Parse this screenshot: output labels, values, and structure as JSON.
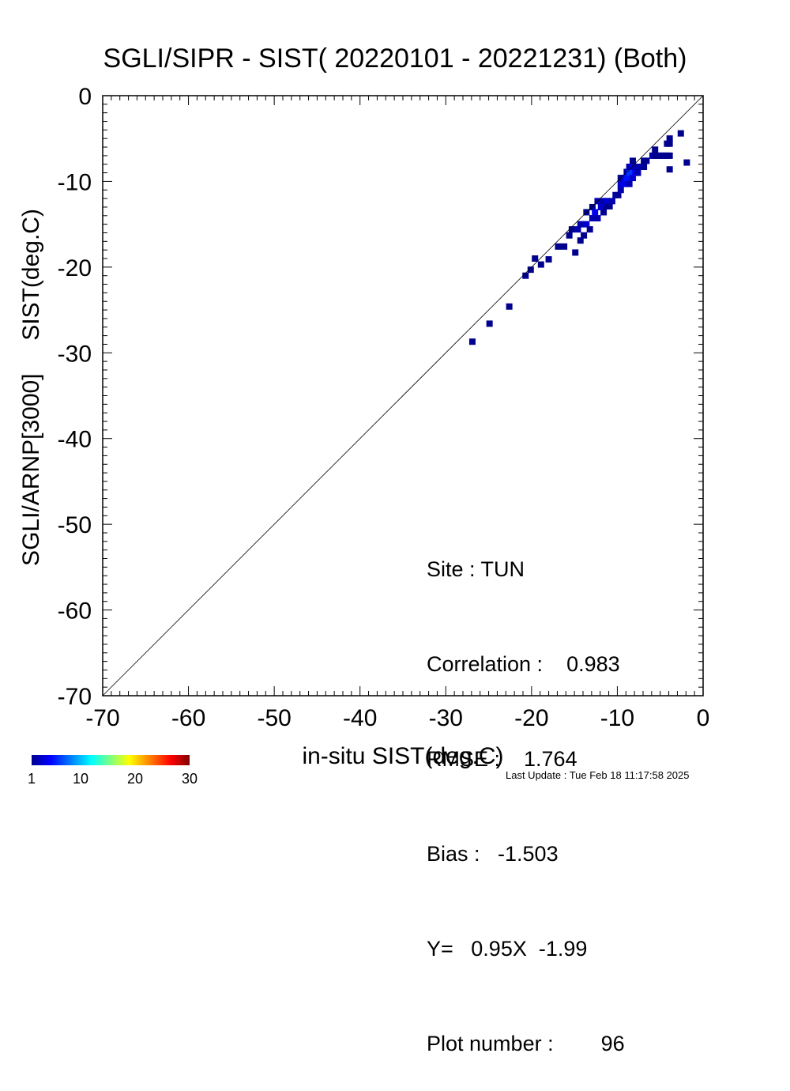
{
  "chart_data": {
    "type": "scatter",
    "title": "SGLI/SIPR - SIST( 20220101 - 20221231) (Both)",
    "xlabel": "in-situ SIST(deg.C)",
    "ylabel_lines": [
      "SGLI/ARNP[3000]",
      "SIST(deg.C)"
    ],
    "xlim": [
      -70,
      0
    ],
    "ylim": [
      -70,
      0
    ],
    "x_ticks": [
      "-70",
      "-60",
      "-50",
      "-40",
      "-30",
      "-20",
      "-10",
      "0"
    ],
    "y_ticks": [
      "0",
      "-10",
      "-20",
      "-30",
      "-40",
      "-50",
      "-60",
      "-70"
    ],
    "grid": false,
    "reference_line": "1:1",
    "colorbar": {
      "min": 1,
      "max": 30,
      "tick_labels": [
        "1",
        "10",
        "20",
        "30"
      ],
      "colormap": "jet"
    },
    "points": [
      {
        "x": -26.9,
        "y": -28.7,
        "c": 1
      },
      {
        "x": -24.9,
        "y": -26.6,
        "c": 1
      },
      {
        "x": -22.6,
        "y": -24.6,
        "c": 1
      },
      {
        "x": -20.7,
        "y": -21.0,
        "c": 1
      },
      {
        "x": -20.1,
        "y": -20.3,
        "c": 1
      },
      {
        "x": -19.6,
        "y": -19.0,
        "c": 1
      },
      {
        "x": -18.9,
        "y": -19.7,
        "c": 1
      },
      {
        "x": -18.0,
        "y": -19.1,
        "c": 1
      },
      {
        "x": -16.9,
        "y": -17.6,
        "c": 1
      },
      {
        "x": -16.2,
        "y": -17.6,
        "c": 1
      },
      {
        "x": -15.6,
        "y": -16.3,
        "c": 1
      },
      {
        "x": -15.3,
        "y": -15.6,
        "c": 1
      },
      {
        "x": -14.9,
        "y": -18.3,
        "c": 1
      },
      {
        "x": -14.6,
        "y": -15.6,
        "c": 2
      },
      {
        "x": -14.3,
        "y": -16.9,
        "c": 1
      },
      {
        "x": -14.3,
        "y": -15.0,
        "c": 2
      },
      {
        "x": -13.9,
        "y": -16.3,
        "c": 1
      },
      {
        "x": -13.6,
        "y": -15.0,
        "c": 3
      },
      {
        "x": -13.6,
        "y": -13.6,
        "c": 1
      },
      {
        "x": -13.2,
        "y": -15.6,
        "c": 1
      },
      {
        "x": -12.9,
        "y": -14.3,
        "c": 2
      },
      {
        "x": -12.9,
        "y": -13.0,
        "c": 1
      },
      {
        "x": -12.6,
        "y": -13.6,
        "c": 4
      },
      {
        "x": -12.3,
        "y": -14.3,
        "c": 2
      },
      {
        "x": -12.3,
        "y": -12.3,
        "c": 2
      },
      {
        "x": -11.9,
        "y": -13.0,
        "c": 3
      },
      {
        "x": -11.6,
        "y": -13.6,
        "c": 1
      },
      {
        "x": -11.6,
        "y": -12.3,
        "c": 2
      },
      {
        "x": -11.2,
        "y": -12.9,
        "c": 1
      },
      {
        "x": -11.2,
        "y": -12.3,
        "c": 3
      },
      {
        "x": -10.9,
        "y": -12.9,
        "c": 1
      },
      {
        "x": -10.6,
        "y": -12.3,
        "c": 2
      },
      {
        "x": -10.2,
        "y": -11.6,
        "c": 2
      },
      {
        "x": -9.9,
        "y": -11.6,
        "c": 1
      },
      {
        "x": -9.6,
        "y": -11.0,
        "c": 2
      },
      {
        "x": -9.6,
        "y": -10.3,
        "c": 3
      },
      {
        "x": -9.6,
        "y": -9.6,
        "c": 1
      },
      {
        "x": -9.2,
        "y": -10.3,
        "c": 4
      },
      {
        "x": -9.2,
        "y": -9.6,
        "c": 3
      },
      {
        "x": -8.9,
        "y": -9.6,
        "c": 5
      },
      {
        "x": -8.9,
        "y": -8.9,
        "c": 2
      },
      {
        "x": -8.6,
        "y": -10.3,
        "c": 2
      },
      {
        "x": -8.6,
        "y": -9.0,
        "c": 6
      },
      {
        "x": -8.6,
        "y": -8.3,
        "c": 2
      },
      {
        "x": -8.2,
        "y": -9.6,
        "c": 3
      },
      {
        "x": -8.2,
        "y": -8.3,
        "c": 4
      },
      {
        "x": -8.2,
        "y": -7.6,
        "c": 1
      },
      {
        "x": -7.9,
        "y": -9.0,
        "c": 4
      },
      {
        "x": -7.9,
        "y": -8.3,
        "c": 2
      },
      {
        "x": -7.6,
        "y": -9.0,
        "c": 2
      },
      {
        "x": -7.2,
        "y": -8.3,
        "c": 2
      },
      {
        "x": -6.9,
        "y": -8.3,
        "c": 1
      },
      {
        "x": -6.9,
        "y": -7.6,
        "c": 1
      },
      {
        "x": -6.6,
        "y": -7.6,
        "c": 1
      },
      {
        "x": -5.9,
        "y": -7.0,
        "c": 2
      },
      {
        "x": -5.6,
        "y": -7.0,
        "c": 1
      },
      {
        "x": -5.6,
        "y": -6.3,
        "c": 1
      },
      {
        "x": -5.2,
        "y": -7.0,
        "c": 1
      },
      {
        "x": -4.9,
        "y": -7.0,
        "c": 1
      },
      {
        "x": -4.6,
        "y": -7.0,
        "c": 1
      },
      {
        "x": -4.2,
        "y": -7.0,
        "c": 1
      },
      {
        "x": -4.2,
        "y": -5.6,
        "c": 1
      },
      {
        "x": -3.9,
        "y": -7.0,
        "c": 1
      },
      {
        "x": -3.9,
        "y": -5.6,
        "c": 1
      },
      {
        "x": -3.9,
        "y": -5.0,
        "c": 1
      },
      {
        "x": -3.9,
        "y": -8.6,
        "c": 1
      },
      {
        "x": -2.6,
        "y": -4.4,
        "c": 1
      },
      {
        "x": -1.9,
        "y": -7.8,
        "c": 1
      }
    ]
  },
  "stats": {
    "site": "Site : TUN",
    "correlation": "Correlation :    0.983",
    "rmse": "RMSE :    1.764",
    "bias": "Bias :   -1.503",
    "fit": "Y=   0.95X  -1.99",
    "plot_number": "Plot number :        96"
  },
  "footer": "Last Update : Tue Feb 18 11:17:58 2025"
}
